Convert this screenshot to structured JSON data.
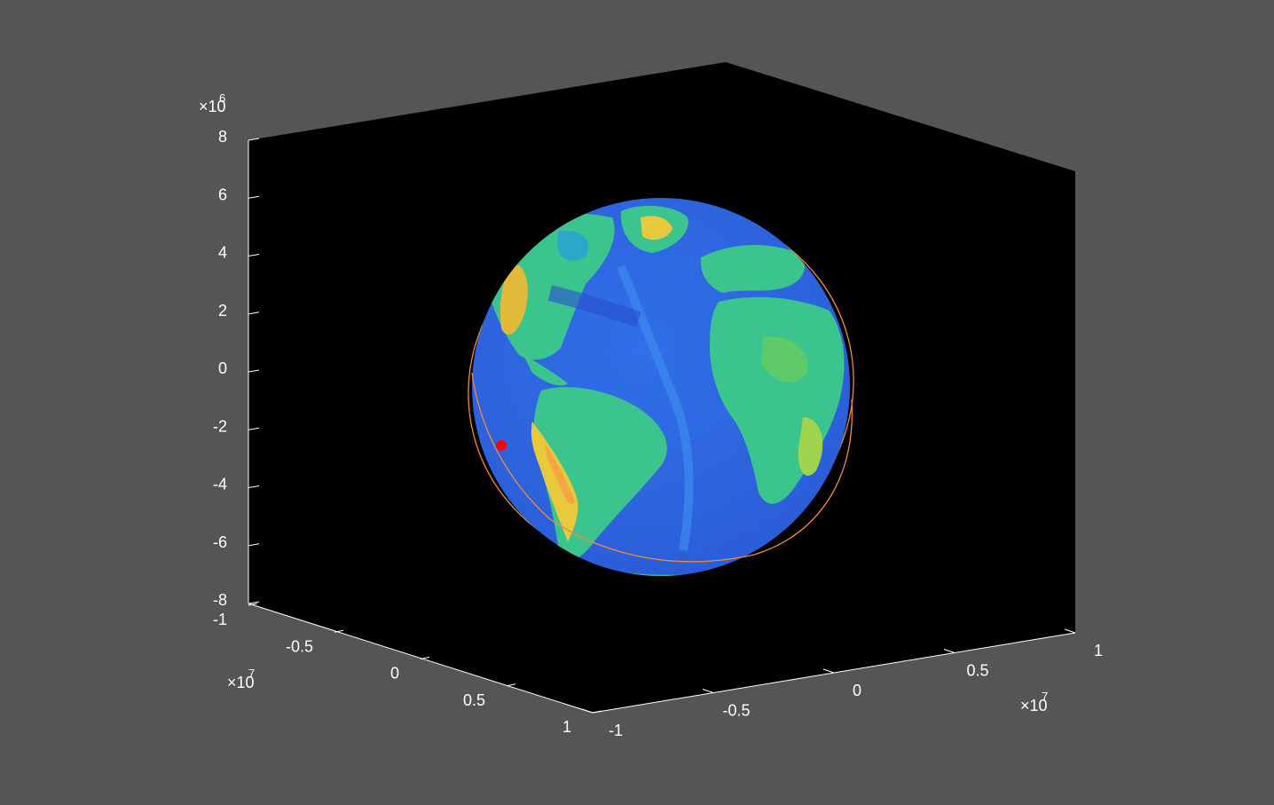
{
  "chart_data": {
    "type": "scatter",
    "title": "",
    "xlabel": "",
    "ylabel": "",
    "zlabel": "",
    "grid": false,
    "background_color": "#000000",
    "figure_color": "#555555",
    "x_axis": {
      "range": [
        -10000000,
        10000000
      ],
      "tick_labels": [
        "-1",
        "-0.5",
        "0",
        "0.5",
        "1"
      ],
      "exponent_label": "×10",
      "exponent": "7"
    },
    "y_axis": {
      "range": [
        -10000000,
        10000000
      ],
      "tick_labels": [
        "-1",
        "-0.5",
        "0",
        "0.5",
        "1"
      ],
      "exponent_label": "×10",
      "exponent": "7"
    },
    "z_axis": {
      "range": [
        -8000000,
        8000000
      ],
      "tick_labels": [
        "-8",
        "-6",
        "-4",
        "-2",
        "0",
        "2",
        "4",
        "6",
        "8"
      ],
      "exponent_label": "×10",
      "exponent": "6"
    },
    "surface": {
      "type": "earth-globe",
      "colormap": "parula",
      "radius": 6371000
    },
    "series": [
      {
        "type": "orbit-line",
        "color": "#f28c38"
      },
      {
        "type": "satellite-marker",
        "color": "#ff0000"
      }
    ]
  }
}
